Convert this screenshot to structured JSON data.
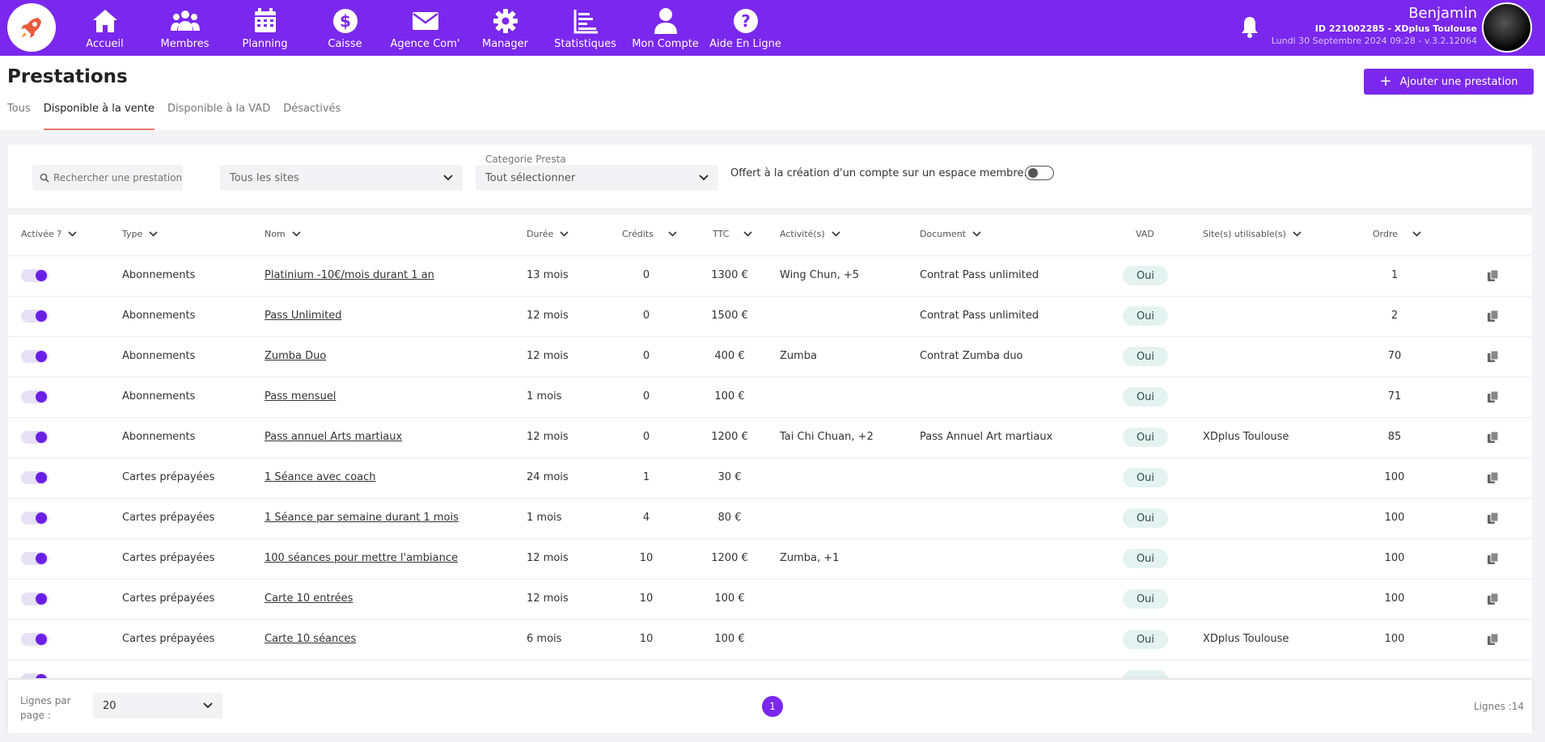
{
  "nav": [
    {
      "label": "Accueil",
      "icon": "home-icon"
    },
    {
      "label": "Membres",
      "icon": "users-icon"
    },
    {
      "label": "Planning",
      "icon": "calendar-icon"
    },
    {
      "label": "Caisse",
      "icon": "dollar-icon"
    },
    {
      "label": "Agence Com'",
      "icon": "envelope-icon"
    },
    {
      "label": "Manager",
      "icon": "gear-icon"
    },
    {
      "label": "Statistiques",
      "icon": "chart-icon"
    },
    {
      "label": "Mon Compte",
      "icon": "user-icon"
    },
    {
      "label": "Aide En Ligne",
      "icon": "help-icon"
    }
  ],
  "user": {
    "name": "Benjamin",
    "id_line": "ID 221002285 - XDplus Toulouse",
    "date_line": "Lundi 30 Septembre 2024 09:28 - v.3.2.12064"
  },
  "page": {
    "title": "Prestations",
    "add_label": "Ajouter une prestation"
  },
  "tabs": [
    {
      "label": "Tous",
      "active": false
    },
    {
      "label": "Disponible à la vente",
      "active": true
    },
    {
      "label": "Disponible à la VAD",
      "active": false
    },
    {
      "label": "Désactivés",
      "active": false
    }
  ],
  "filters": {
    "search_placeholder": "Rechercher une prestation",
    "sites_value": "Tous les sites",
    "category_label": "Categorie Presta",
    "category_value": "Tout sélectionner",
    "offert_label": "Offert à la création d'un compte sur un espace membre.",
    "offert_enabled": false
  },
  "columns": {
    "active": "Activée ?",
    "type": "Type",
    "nom": "Nom",
    "duree": "Durée",
    "credits": "Crédits",
    "ttc": "TTC",
    "activites": "Activité(s)",
    "document": "Document",
    "vad": "VAD",
    "sites": "Site(s) utilisable(s)",
    "ordre": "Ordre"
  },
  "rows": [
    {
      "active": true,
      "type": "Abonnements",
      "nom": "Platinium -10€/mois durant 1 an",
      "duree": "13 mois",
      "credits": "0",
      "ttc": "1300 €",
      "activites": "Wing Chun, +5",
      "document": "Contrat Pass unlimited",
      "vad": "Oui",
      "sites": "",
      "ordre": "1"
    },
    {
      "active": true,
      "type": "Abonnements",
      "nom": "Pass Unlimited",
      "duree": "12 mois",
      "credits": "0",
      "ttc": "1500 €",
      "activites": "",
      "document": "Contrat Pass unlimited",
      "vad": "Oui",
      "sites": "",
      "ordre": "2"
    },
    {
      "active": true,
      "type": "Abonnements",
      "nom": "Zumba Duo",
      "duree": "12 mois",
      "credits": "0",
      "ttc": "400 €",
      "activites": "Zumba",
      "document": "Contrat Zumba duo",
      "vad": "Oui",
      "sites": "",
      "ordre": "70"
    },
    {
      "active": true,
      "type": "Abonnements",
      "nom": "Pass mensuel",
      "duree": "1 mois",
      "credits": "0",
      "ttc": "100 €",
      "activites": "",
      "document": "",
      "vad": "Oui",
      "sites": "",
      "ordre": "71"
    },
    {
      "active": true,
      "type": "Abonnements",
      "nom": "Pass annuel Arts martiaux",
      "duree": "12 mois",
      "credits": "0",
      "ttc": "1200 €",
      "activites": "Tai Chi Chuan, +2",
      "document": "Pass Annuel Art martiaux",
      "vad": "Oui",
      "sites": "XDplus Toulouse",
      "ordre": "85"
    },
    {
      "active": true,
      "type": "Cartes prépayées",
      "nom": "1 Séance avec coach",
      "duree": "24 mois",
      "credits": "1",
      "ttc": "30 €",
      "activites": "",
      "document": "",
      "vad": "Oui",
      "sites": "",
      "ordre": "100"
    },
    {
      "active": true,
      "type": "Cartes prépayées",
      "nom": "1 Séance par semaine durant 1 mois",
      "duree": "1 mois",
      "credits": "4",
      "ttc": "80 €",
      "activites": "",
      "document": "",
      "vad": "Oui",
      "sites": "",
      "ordre": "100"
    },
    {
      "active": true,
      "type": "Cartes prépayées",
      "nom": "100 séances pour mettre l'ambiance",
      "duree": "12 mois",
      "credits": "10",
      "ttc": "1200 €",
      "activites": "Zumba, +1",
      "document": "",
      "vad": "Oui",
      "sites": "",
      "ordre": "100"
    },
    {
      "active": true,
      "type": "Cartes prépayées",
      "nom": "Carte 10 entrées",
      "duree": "12 mois",
      "credits": "10",
      "ttc": "100 €",
      "activites": "",
      "document": "",
      "vad": "Oui",
      "sites": "",
      "ordre": "100"
    },
    {
      "active": true,
      "type": "Cartes prépayées",
      "nom": "Carte 10 séances",
      "duree": "6 mois",
      "credits": "10",
      "ttc": "100 €",
      "activites": "",
      "document": "",
      "vad": "Oui",
      "sites": "XDplus Toulouse",
      "ordre": "100"
    }
  ],
  "footer": {
    "lines_per_page_label": "Lignes par page :",
    "lines_per_page_value": "20",
    "current_page": "1",
    "total_lines": "Lignes :14"
  },
  "colors": {
    "accent": "#7a28ee",
    "tab_underline": "#e6786a",
    "vad_badge_bg": "#e4f3ef"
  }
}
